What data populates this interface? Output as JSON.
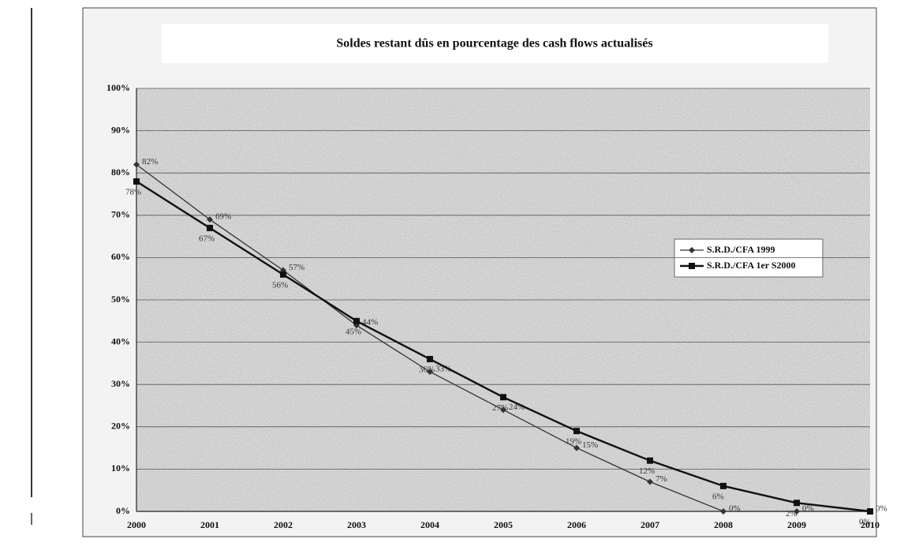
{
  "chart_data": {
    "type": "line",
    "title": "Soldes restant dûs en pourcentage des cash flows actualisés",
    "categories": [
      "2000",
      "2001",
      "2002",
      "2003",
      "2004",
      "2005",
      "2006",
      "2007",
      "2008",
      "2009",
      "2010"
    ],
    "series": [
      {
        "name": "S.R.D./CFA 1999",
        "color": "#333333",
        "marker": "diamond",
        "values": [
          82,
          69,
          57,
          44,
          33,
          24,
          15,
          7,
          0,
          0,
          0
        ],
        "value_labels": [
          "82%",
          "69%",
          "57%",
          "44%",
          "33%",
          "24%",
          "15%",
          "7%",
          "0%",
          "0%",
          "0%"
        ]
      },
      {
        "name": "S.R.D./CFA 1er S2000",
        "color": "#111111",
        "marker": "square",
        "values": [
          78,
          67,
          56,
          45,
          36,
          27,
          19,
          12,
          6,
          2,
          0
        ],
        "value_labels": [
          "78%",
          "67%",
          "56%",
          "45%",
          "36%",
          "27%",
          "19%",
          "12%",
          "6%",
          "2%",
          "0%"
        ]
      }
    ],
    "ylim": [
      0,
      100
    ],
    "yticks": [
      {
        "value": 0,
        "label": "0%"
      },
      {
        "value": 10,
        "label": "10%"
      },
      {
        "value": 20,
        "label": "20%"
      },
      {
        "value": 30,
        "label": "30%"
      },
      {
        "value": 40,
        "label": "40%"
      },
      {
        "value": 50,
        "label": "50%"
      },
      {
        "value": 60,
        "label": "60%"
      },
      {
        "value": 70,
        "label": "70%"
      },
      {
        "value": 80,
        "label": "80%"
      },
      {
        "value": 90,
        "label": "90%"
      },
      {
        "value": 100,
        "label": "100%"
      }
    ],
    "grid": true,
    "legend": "right"
  }
}
